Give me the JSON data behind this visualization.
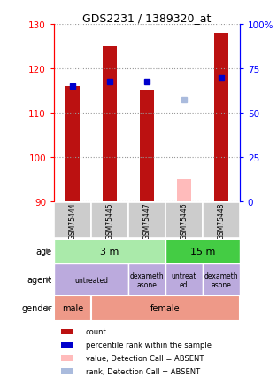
{
  "title": "GDS2231 / 1389320_at",
  "samples": [
    "GSM75444",
    "GSM75445",
    "GSM75447",
    "GSM75446",
    "GSM75448"
  ],
  "ylim": [
    90,
    130
  ],
  "ylim_right": [
    0,
    100
  ],
  "y_ticks_left": [
    90,
    100,
    110,
    120,
    130
  ],
  "y_ticks_right": [
    0,
    25,
    50,
    75,
    100
  ],
  "bar_values": [
    116,
    125,
    115,
    95,
    128
  ],
  "bar_bottoms": [
    90,
    90,
    90,
    90,
    90
  ],
  "bar_color": "#bb1111",
  "absent_bar_color": "#ffbbbb",
  "absent_bar_sample_idx": 3,
  "dot_values": [
    116,
    117,
    117,
    113,
    118
  ],
  "dot_color": "#0000cc",
  "absent_dot_color": "#aabbdd",
  "absent_dot_sample_idx": 3,
  "age_3m_color": "#aaeaaa",
  "age_15m_color": "#44cc44",
  "agent_color": "#bbaadd",
  "gender_color": "#ee9988",
  "sample_bg_color": "#cccccc",
  "bg_color": "#ffffff",
  "grid_color": "#999999",
  "bar_width": 0.38,
  "legend": [
    {
      "color": "#bb1111",
      "label": "count"
    },
    {
      "color": "#0000cc",
      "label": "percentile rank within the sample"
    },
    {
      "color": "#ffbbbb",
      "label": "value, Detection Call = ABSENT"
    },
    {
      "color": "#aabbdd",
      "label": "rank, Detection Call = ABSENT"
    }
  ]
}
